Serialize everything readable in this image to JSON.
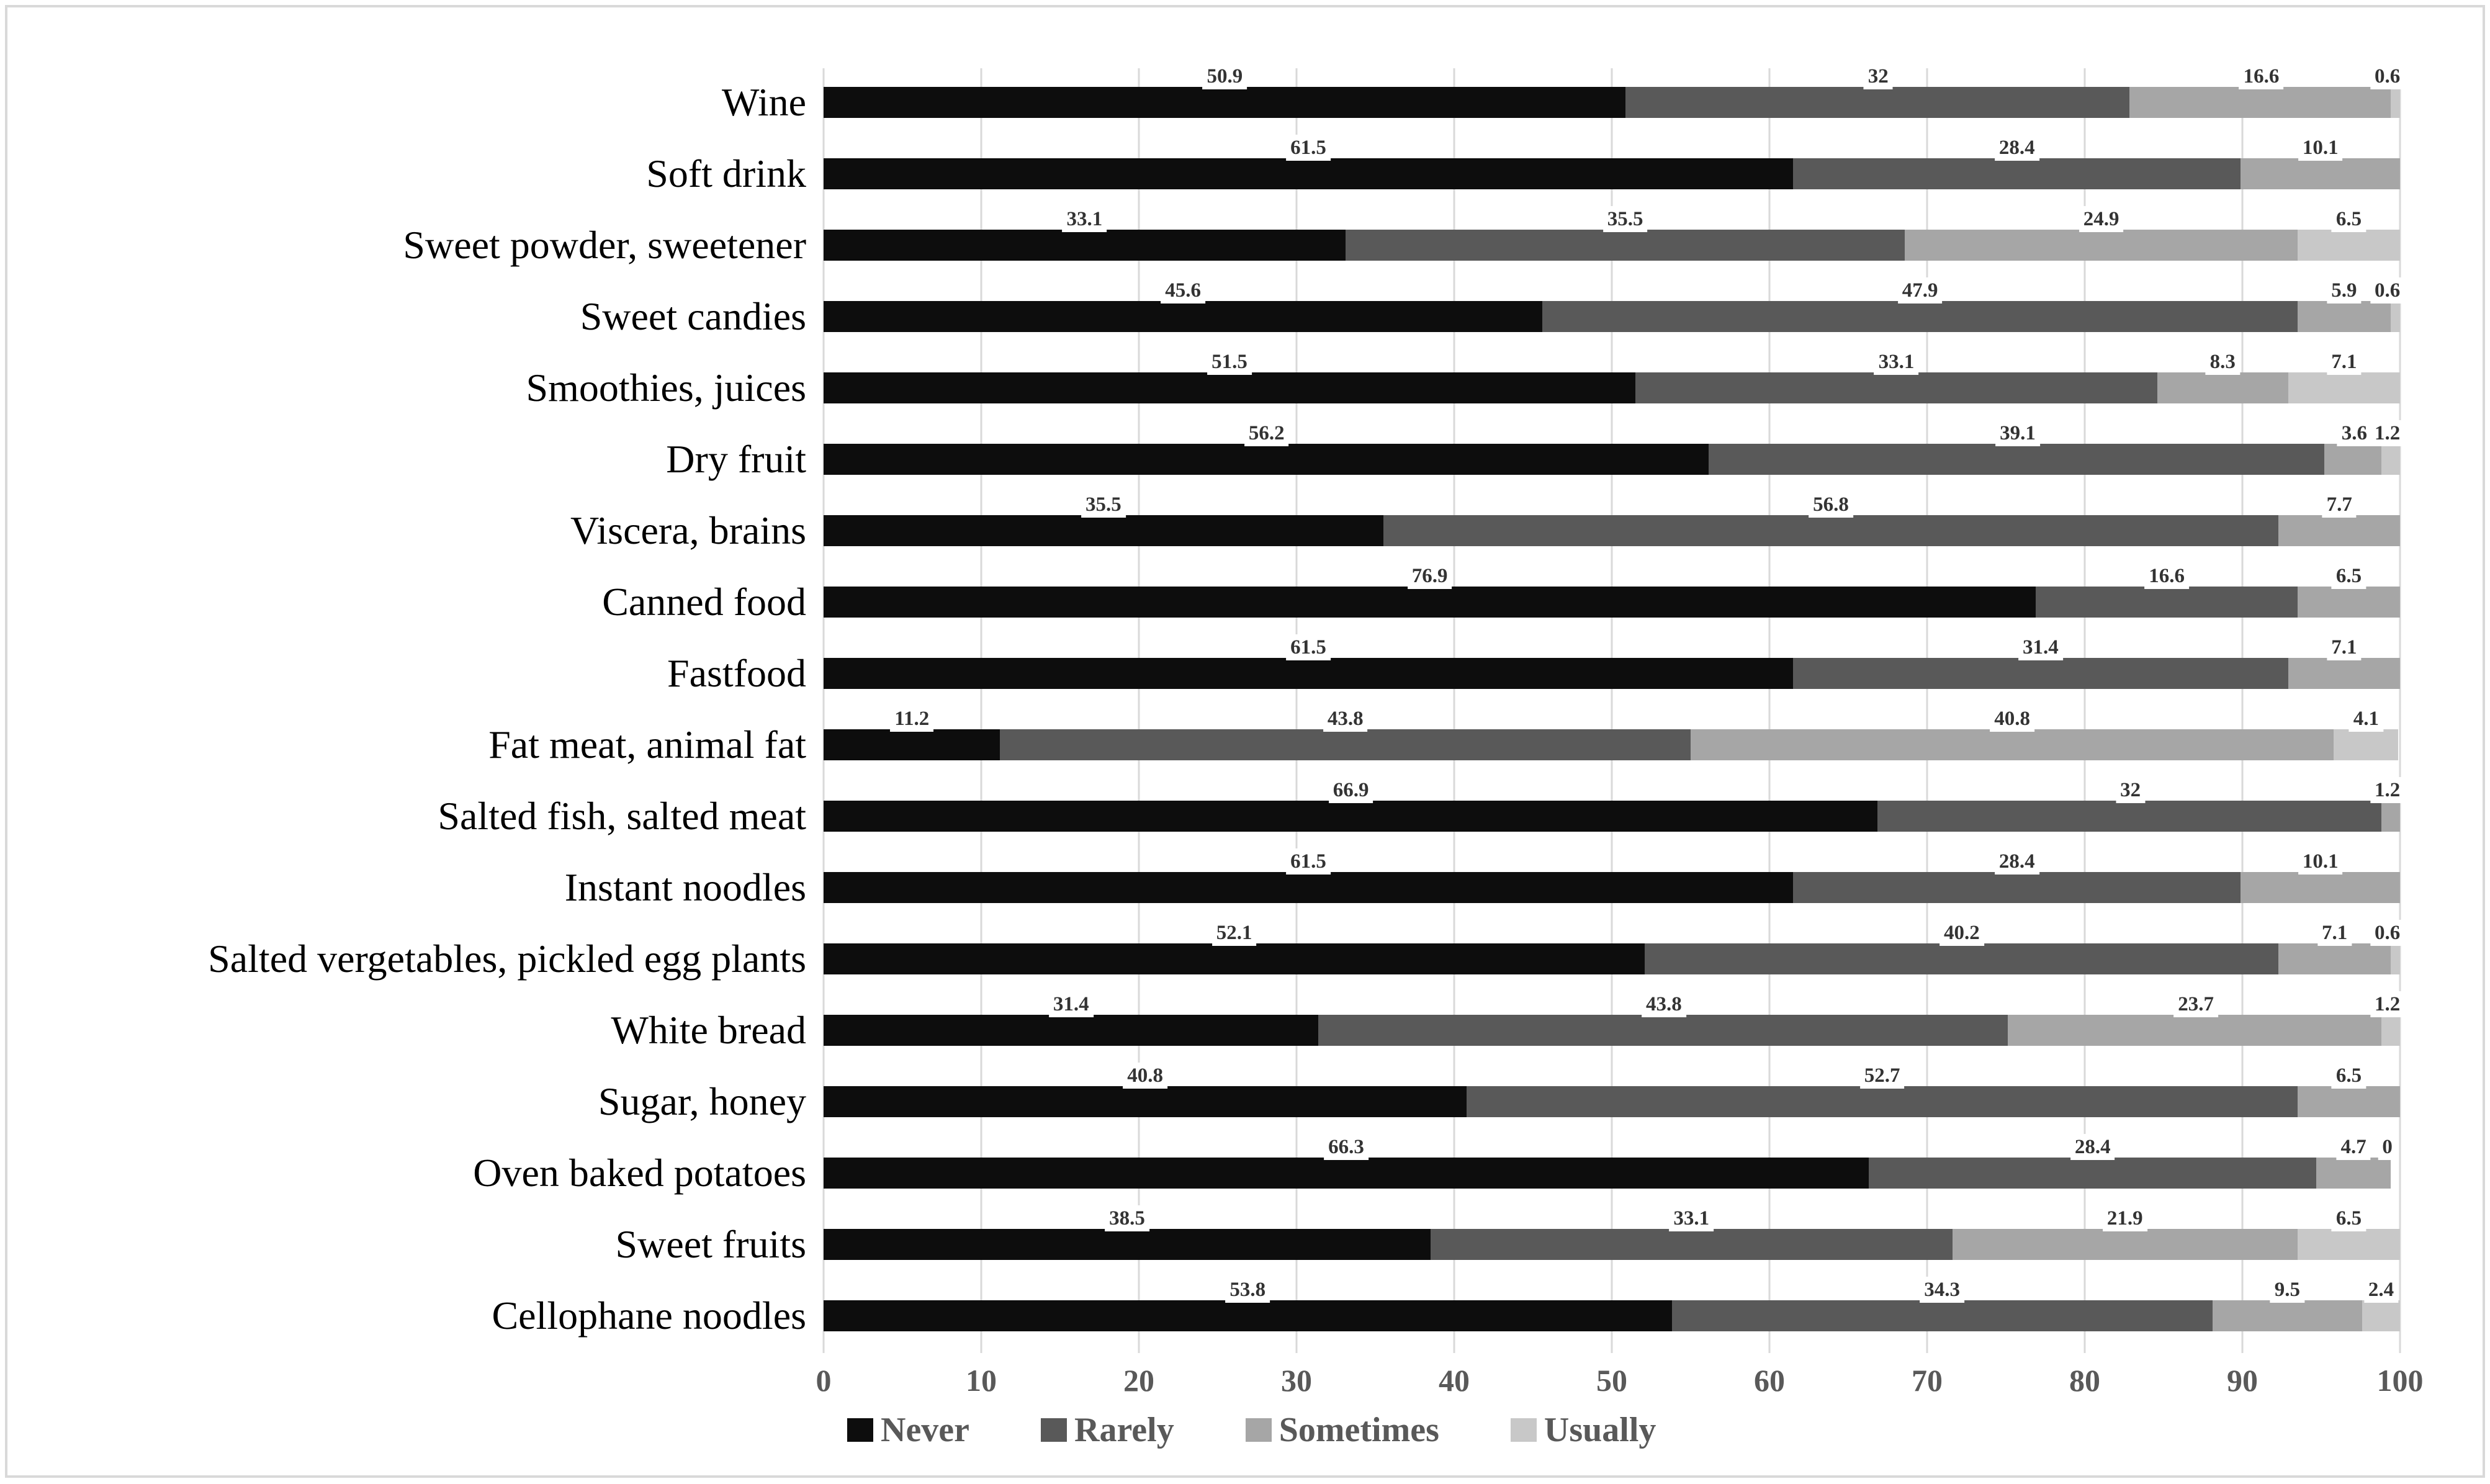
{
  "chart_data": {
    "type": "bar",
    "orientation": "horizontal",
    "stacked": true,
    "title": "",
    "xlabel": "",
    "ylabel": "",
    "xlim": [
      0,
      100
    ],
    "grid": "vertical",
    "x_ticks": [
      "0",
      "10",
      "20",
      "30",
      "40",
      "50",
      "60",
      "70",
      "80",
      "90",
      "100"
    ],
    "legend_position": "bottom",
    "series_names": [
      "Never",
      "Rarely",
      "Sometimes",
      "Usually"
    ],
    "legend": [
      {
        "name": "Never",
        "color": "#0d0d0d"
      },
      {
        "name": "Rarely",
        "color": "#595959"
      },
      {
        "name": "Sometimes",
        "color": "#a6a6a6"
      },
      {
        "name": "Usually",
        "color": "#c8c8c8"
      }
    ],
    "rows": [
      {
        "category": "Wine",
        "values": [
          50.9,
          32,
          16.6,
          0.6
        ],
        "labels": [
          "50.9",
          "32",
          "16.6",
          "0.6"
        ]
      },
      {
        "category": "Soft drink",
        "values": [
          61.5,
          28.4,
          10.1
        ],
        "labels": [
          "61.5",
          "28.4",
          "10.1"
        ]
      },
      {
        "category": "Sweet powder, sweetener",
        "values": [
          33.1,
          35.5,
          24.9,
          6.5
        ],
        "labels": [
          "33.1",
          "35.5",
          "24.9",
          "6.5"
        ]
      },
      {
        "category": "Sweet candies",
        "values": [
          45.6,
          47.9,
          5.9,
          0.6
        ],
        "labels": [
          "45.6",
          "47.9",
          "5.9",
          "0.6"
        ]
      },
      {
        "category": "Smoothies, juices",
        "values": [
          51.5,
          33.1,
          8.3,
          7.1
        ],
        "labels": [
          "51.5",
          "33.1",
          "8.3",
          "7.1"
        ]
      },
      {
        "category": "Dry fruit",
        "values": [
          56.2,
          39.1,
          3.6,
          1.2
        ],
        "labels": [
          "56.2",
          "39.1",
          "3.6",
          "1.2"
        ]
      },
      {
        "category": "Viscera, brains",
        "values": [
          35.5,
          56.8,
          7.7
        ],
        "labels": [
          "35.5",
          "56.8",
          "7.7"
        ]
      },
      {
        "category": "Canned food",
        "values": [
          76.9,
          16.6,
          6.5
        ],
        "labels": [
          "76.9",
          "16.6",
          "6.5"
        ]
      },
      {
        "category": "Fastfood",
        "values": [
          61.5,
          31.4,
          7.1
        ],
        "labels": [
          "61.5",
          "31.4",
          "7.1"
        ]
      },
      {
        "category": "Fat meat, animal fat",
        "values": [
          11.2,
          43.8,
          40.8,
          4.1
        ],
        "labels": [
          "11.2",
          "43.8",
          "40.8",
          "4.1"
        ]
      },
      {
        "category": "Salted fish, salted meat",
        "values": [
          66.9,
          32,
          1.2
        ],
        "labels": [
          "66.9",
          "32",
          "1.2"
        ]
      },
      {
        "category": "Instant noodles",
        "values": [
          61.5,
          28.4,
          10.1
        ],
        "labels": [
          "61.5",
          "28.4",
          "10.1"
        ]
      },
      {
        "category": "Salted vergetables, pickled egg plants",
        "values": [
          52.1,
          40.2,
          7.1,
          0.6
        ],
        "labels": [
          "52.1",
          "40.2",
          "7.1",
          "0.6"
        ]
      },
      {
        "category": "White bread",
        "values": [
          31.4,
          43.8,
          23.7,
          1.2
        ],
        "labels": [
          "31.4",
          "43.8",
          "23.7",
          "1.2"
        ]
      },
      {
        "category": "Sugar, honey",
        "values": [
          40.8,
          52.7,
          6.5
        ],
        "labels": [
          "40.8",
          "52.7",
          "6.5"
        ]
      },
      {
        "category": "Oven baked potatoes",
        "values": [
          66.3,
          28.4,
          4.7,
          0
        ],
        "labels": [
          "66.3",
          "28.4",
          "4.7",
          "0"
        ]
      },
      {
        "category": "Sweet fruits",
        "values": [
          38.5,
          33.1,
          21.9,
          6.5
        ],
        "labels": [
          "38.5",
          "33.1",
          "21.9",
          "6.5"
        ]
      },
      {
        "category": "Cellophane noodles",
        "values": [
          53.8,
          34.3,
          9.5,
          2.4
        ],
        "labels": [
          "53.8",
          "34.3",
          "9.5",
          "2.4"
        ]
      }
    ]
  },
  "colors": {
    "background": "#ffffff",
    "frame_border": "#d9d9d9",
    "gridline": "#d9d9d9",
    "data_label": "#333333",
    "axis_label": "#595959",
    "category_label": "#000000"
  }
}
